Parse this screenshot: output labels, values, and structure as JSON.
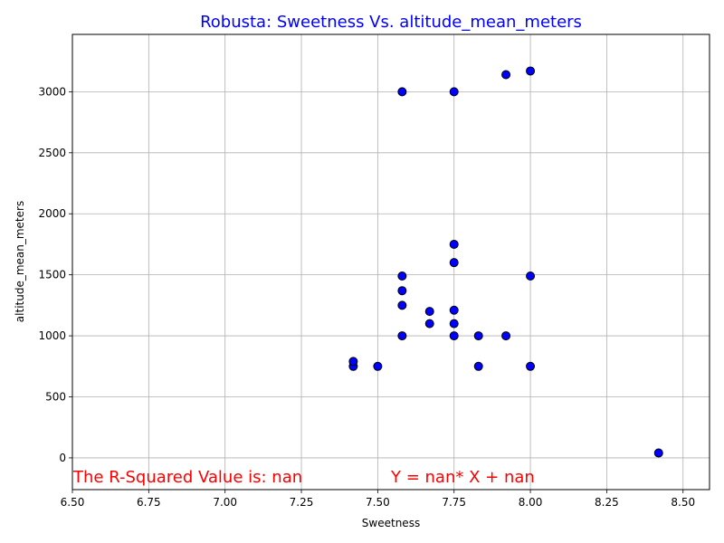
{
  "chart_data": {
    "type": "scatter",
    "title": "Robusta: Sweetness Vs. altitude_mean_meters",
    "xlabel": "Sweetness",
    "ylabel": "altitude_mean_meters",
    "xlim": [
      6.5,
      8.5867
    ],
    "ylim": [
      -260,
      3470
    ],
    "xticks": [
      "6.50",
      "6.75",
      "7.00",
      "7.25",
      "7.50",
      "7.75",
      "8.00",
      "8.25",
      "8.50"
    ],
    "yticks": [
      "0",
      "500",
      "1000",
      "1500",
      "2000",
      "2500",
      "3000"
    ],
    "grid": true,
    "marker_color": "#0000ff",
    "marker_edge_color": "#000000",
    "title_color": "#0000ff",
    "annotation_color": "#ff0000",
    "points": [
      {
        "x": 7.42,
        "y": 750
      },
      {
        "x": 7.42,
        "y": 790
      },
      {
        "x": 7.5,
        "y": 750
      },
      {
        "x": 7.58,
        "y": 3000
      },
      {
        "x": 7.58,
        "y": 1490
      },
      {
        "x": 7.58,
        "y": 1370
      },
      {
        "x": 7.58,
        "y": 1250
      },
      {
        "x": 7.58,
        "y": 1000
      },
      {
        "x": 7.67,
        "y": 1200
      },
      {
        "x": 7.67,
        "y": 1100
      },
      {
        "x": 7.75,
        "y": 3000
      },
      {
        "x": 7.75,
        "y": 1750
      },
      {
        "x": 7.75,
        "y": 1600
      },
      {
        "x": 7.75,
        "y": 1210
      },
      {
        "x": 7.75,
        "y": 1100
      },
      {
        "x": 7.75,
        "y": 1000
      },
      {
        "x": 7.83,
        "y": 1000
      },
      {
        "x": 7.83,
        "y": 750
      },
      {
        "x": 7.92,
        "y": 3140
      },
      {
        "x": 7.92,
        "y": 1000
      },
      {
        "x": 8.0,
        "y": 3170
      },
      {
        "x": 8.0,
        "y": 1490
      },
      {
        "x": 8.0,
        "y": 750
      },
      {
        "x": 8.42,
        "y": 40
      }
    ],
    "annotations": {
      "r_squared": "The R-Squared Value is: nan",
      "equation": "Y = nan* X + nan"
    }
  }
}
